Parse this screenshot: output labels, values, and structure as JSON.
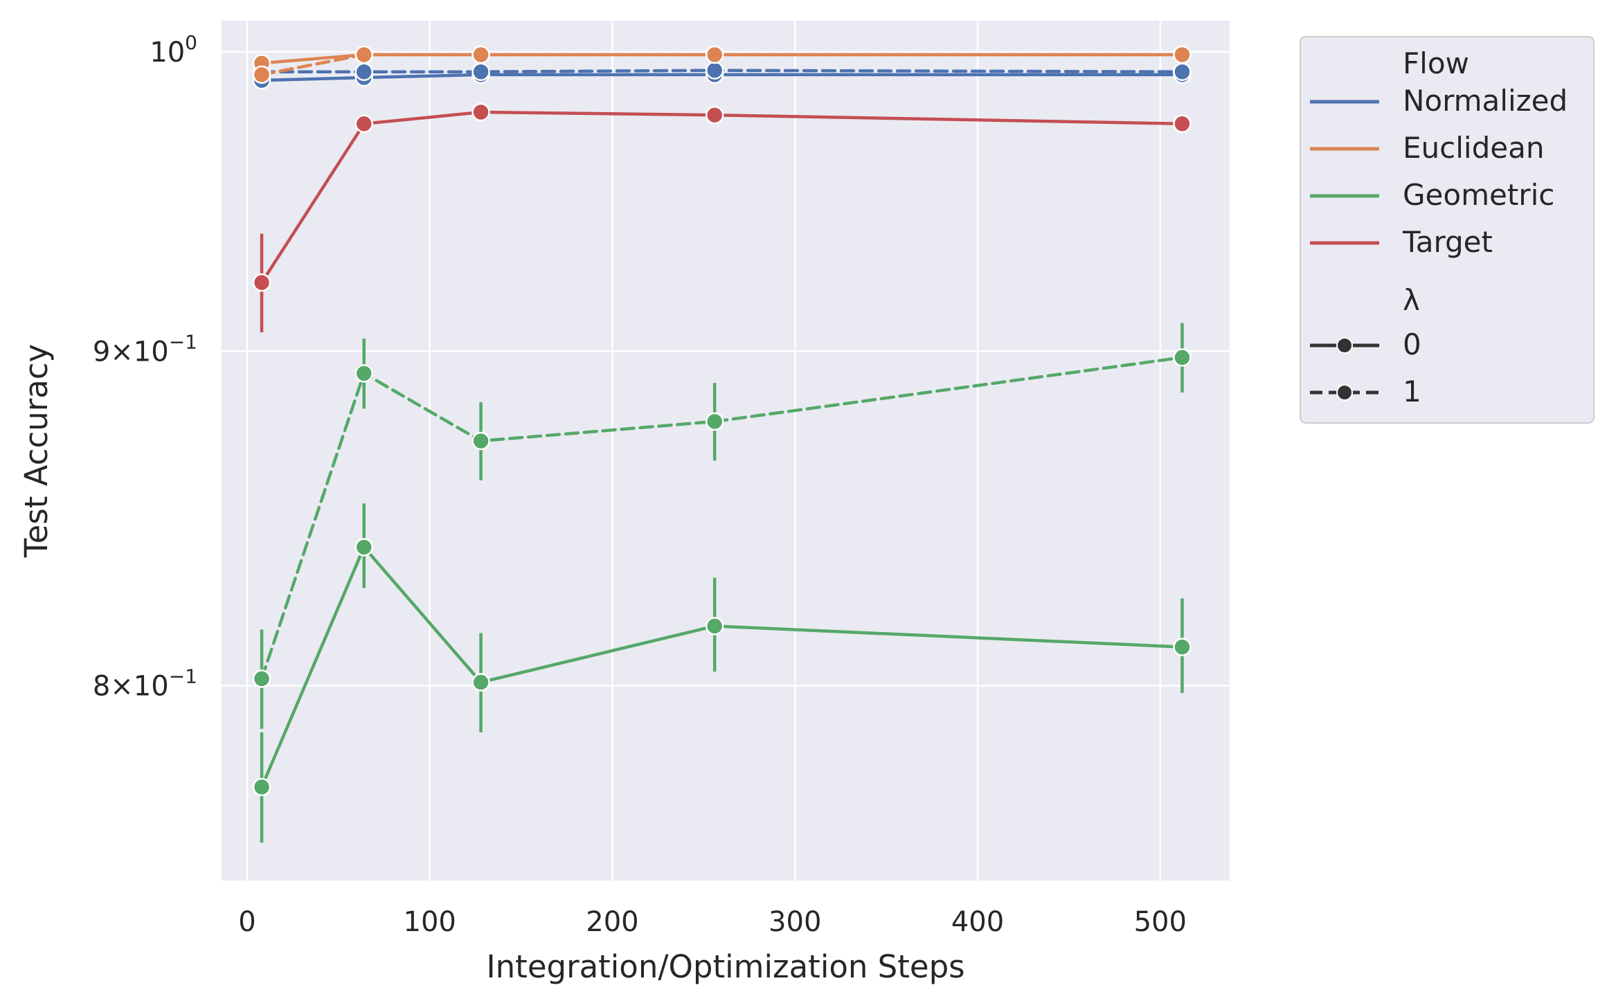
{
  "chart_data": {
    "type": "line",
    "title": "",
    "xlabel": "Integration/Optimization Steps",
    "ylabel": "Test Accuracy",
    "x_ticks": [
      0,
      100,
      200,
      300,
      400,
      500
    ],
    "y_ticks": [
      {
        "value": 1.0,
        "mantissa": "",
        "exponent": "0",
        "base": "10"
      },
      {
        "value": 0.9,
        "mantissa": "9",
        "exponent": "−1",
        "base": "10"
      },
      {
        "value": 0.8,
        "mantissa": "8",
        "exponent": "−1",
        "base": "10"
      }
    ],
    "times_symbol": "×",
    "xlim": [
      -14,
      538
    ],
    "ylim": [
      0.747,
      1.011
    ],
    "y_scale": "log",
    "grid": true,
    "legend": {
      "placement": "outside-right",
      "hue_title": "Flow",
      "style_title": "λ",
      "hue_entries": [
        {
          "label": "Normalized",
          "color": "#4c72b0"
        },
        {
          "label": "Euclidean",
          "color": "#dd8452"
        },
        {
          "label": "Geometric",
          "color": "#55a868"
        },
        {
          "label": "Target",
          "color": "#c44e52"
        }
      ],
      "style_entries": [
        {
          "label": "0",
          "dashed": false
        },
        {
          "label": "1",
          "dashed": true
        }
      ]
    },
    "x": [
      8,
      64,
      128,
      256,
      512
    ],
    "series": [
      {
        "flow": "Normalized",
        "lambda": "0",
        "color": "#4c72b0",
        "dashed": false,
        "values": [
          0.99,
          0.991,
          0.992,
          0.992,
          0.992
        ]
      },
      {
        "flow": "Normalized",
        "lambda": "1",
        "color": "#4c72b0",
        "dashed": true,
        "values": [
          0.993,
          0.993,
          0.993,
          0.9935,
          0.993
        ]
      },
      {
        "flow": "Euclidean",
        "lambda": "0",
        "color": "#dd8452",
        "dashed": false,
        "values": [
          0.996,
          0.999,
          0.999,
          0.999,
          0.999
        ]
      },
      {
        "flow": "Euclidean",
        "lambda": "1",
        "color": "#dd8452",
        "dashed": true,
        "values": [
          0.992,
          0.999,
          0.999,
          0.999,
          0.999
        ]
      },
      {
        "flow": "Target",
        "lambda": "0",
        "color": "#c44e52",
        "dashed": false,
        "values": [
          0.922,
          0.975,
          0.979,
          0.978,
          0.975
        ],
        "error": [
          [
            0.906,
            0.938
          ],
          null,
          null,
          null,
          null
        ]
      },
      {
        "flow": "Geometric",
        "lambda": "0",
        "color": "#55a868",
        "dashed": false,
        "values": [
          0.772,
          0.84,
          0.801,
          0.817,
          0.811
        ],
        "error": [
          [
            0.757,
            0.787
          ],
          [
            0.828,
            0.853
          ],
          [
            0.787,
            0.815
          ],
          [
            0.804,
            0.831
          ],
          [
            0.798,
            0.825
          ]
        ]
      },
      {
        "flow": "Geometric",
        "lambda": "1",
        "color": "#55a868",
        "dashed": true,
        "values": [
          0.802,
          0.893,
          0.872,
          0.878,
          0.898
        ],
        "error": [
          [
            0.788,
            0.816
          ],
          [
            0.882,
            0.904
          ],
          [
            0.86,
            0.884
          ],
          [
            0.866,
            0.89
          ],
          [
            0.887,
            0.909
          ]
        ]
      }
    ]
  }
}
